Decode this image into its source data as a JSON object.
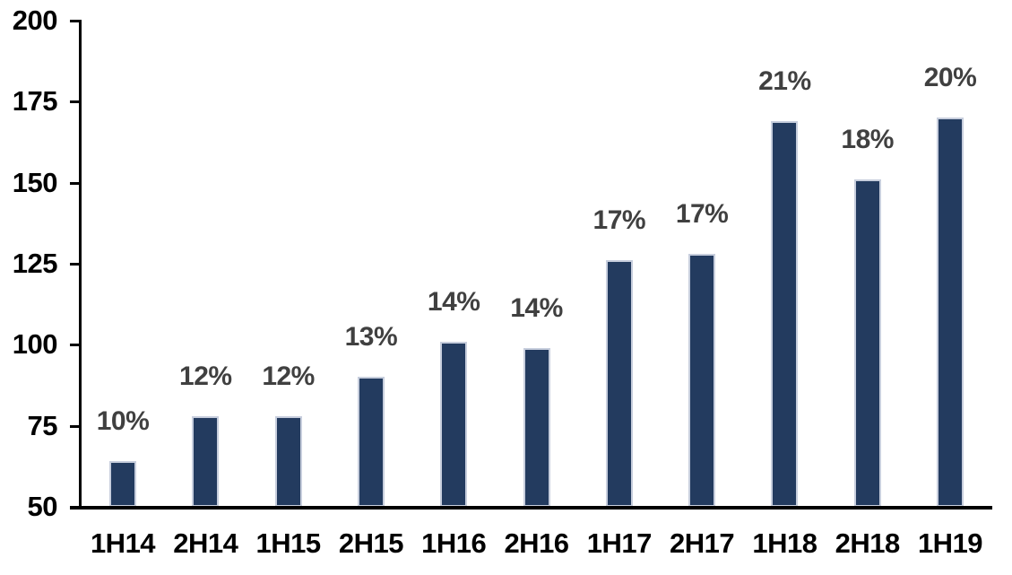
{
  "page": {
    "background_color": "#FFFFFF"
  },
  "chart_data": {
    "type": "bar",
    "title": "",
    "xlabel": "",
    "ylabel": "",
    "categories": [
      "1H14",
      "2H14",
      "1H15",
      "2H15",
      "1H16",
      "2H16",
      "1H17",
      "2H17",
      "1H18",
      "2H18",
      "1H19"
    ],
    "values": [
      64,
      78,
      78,
      90,
      101,
      99,
      126,
      128,
      169,
      151,
      170
    ],
    "bar_labels": [
      "10%",
      "12%",
      "12%",
      "13%",
      "14%",
      "14%",
      "17%",
      "17%",
      "21%",
      "18%",
      "20%"
    ],
    "ylim": [
      50,
      200
    ],
    "yticks": [
      50,
      75,
      100,
      125,
      150,
      175,
      200
    ],
    "grid": false,
    "legend_position": "none",
    "colors": {
      "bar_fill": "#233B5F",
      "bar_border": "#C7CEDD",
      "data_label": "#404040",
      "axis_text": "#000000",
      "axis_line": "#000000"
    }
  }
}
